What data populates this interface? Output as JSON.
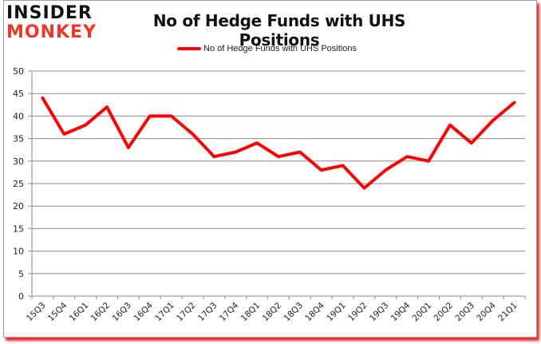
{
  "branding": {
    "logo_line1": "INSIDER",
    "logo_line2": "MONKEY"
  },
  "chart_data": {
    "type": "line",
    "title": "No of Hedge Funds with UHS Positions",
    "xlabel": "",
    "ylabel": "",
    "ylim": [
      0,
      50
    ],
    "yticks": [
      0,
      5,
      10,
      15,
      20,
      25,
      30,
      35,
      40,
      45,
      50
    ],
    "grid": true,
    "legend_position": "top",
    "categories": [
      "15Q3",
      "15Q4",
      "16Q1",
      "16Q2",
      "16Q3",
      "16Q4",
      "17Q1",
      "17Q2",
      "17Q3",
      "17Q4",
      "18Q1",
      "18Q2",
      "18Q3",
      "18Q4",
      "19Q1",
      "19Q2",
      "19Q3",
      "19Q4",
      "20Q1",
      "20Q2",
      "20Q3",
      "20Q4",
      "21Q1"
    ],
    "series": [
      {
        "name": "No of Hedge Funds with UHS Positions",
        "color": "#ff0000",
        "values": [
          44,
          36,
          38,
          42,
          33,
          40,
          40,
          36,
          31,
          32,
          34,
          31,
          32,
          28,
          29,
          24,
          28,
          31,
          30,
          38,
          34,
          39,
          43
        ]
      }
    ]
  },
  "colors": {
    "line": "#ff0000",
    "grid": "#8c8c8c",
    "shadow": "#e60000",
    "logo_accent": "#e8392a"
  }
}
